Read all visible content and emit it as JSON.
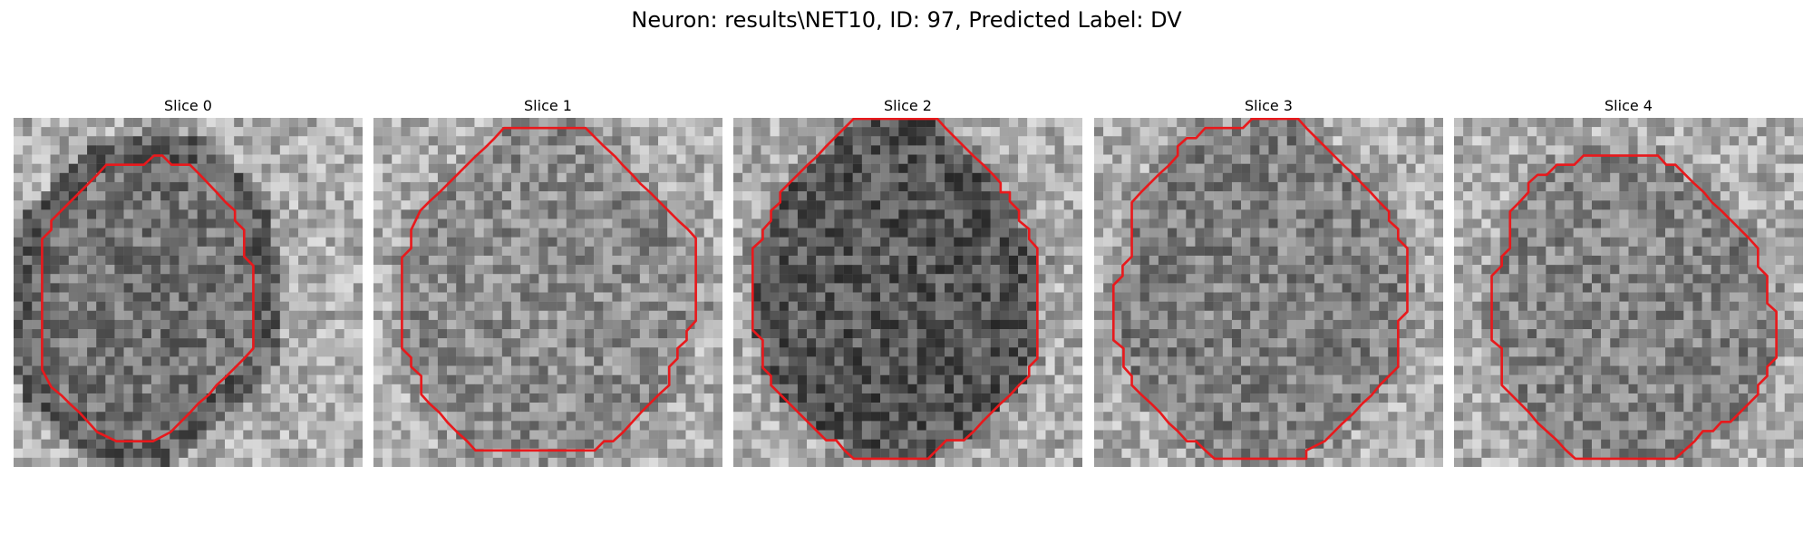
{
  "figure": {
    "title": "Neuron: results\\NET10, ID: 97, Predicted Label: DV",
    "contour_color": "#e8191c",
    "panels": [
      {
        "title": "Slice 0",
        "contour": [
          [
            5.1,
            10.2
          ],
          [
            6.1,
            9.2
          ],
          [
            7.1,
            8.2
          ],
          [
            8.2,
            7.1
          ],
          [
            9.2,
            6.1
          ],
          [
            10.1,
            5.1
          ],
          [
            14.2,
            5.1
          ],
          [
            15.3,
            4.1
          ],
          [
            16.2,
            4.1
          ],
          [
            17.2,
            5.1
          ],
          [
            19.2,
            5.1
          ],
          [
            20.2,
            6.1
          ],
          [
            22.1,
            8.1
          ],
          [
            23.1,
            9.2
          ],
          [
            24.1,
            10.1
          ],
          [
            24.1,
            11.2
          ],
          [
            25.1,
            12.2
          ],
          [
            25.1,
            15.1
          ],
          [
            26.1,
            16.1
          ],
          [
            26.1,
            25.1
          ],
          [
            25.1,
            26.2
          ],
          [
            24.2,
            27.1
          ],
          [
            23.2,
            28.1
          ],
          [
            22.1,
            29.1
          ],
          [
            21.3,
            30.1
          ],
          [
            20.1,
            31.1
          ],
          [
            19.1,
            32.2
          ],
          [
            18.1,
            33.2
          ],
          [
            17.1,
            34.2
          ],
          [
            15.2,
            35.2
          ],
          [
            14.1,
            35.2
          ],
          [
            12.1,
            35.2
          ],
          [
            11.2,
            35.2
          ],
          [
            9.1,
            34.2
          ],
          [
            8.2,
            33.2
          ],
          [
            7.2,
            32.1
          ],
          [
            6.1,
            31.1
          ],
          [
            5.2,
            30.2
          ],
          [
            4.1,
            29.3
          ],
          [
            3.1,
            27.4
          ],
          [
            3.1,
            24.4
          ],
          [
            3.1,
            13.2
          ],
          [
            4.1,
            12.2
          ],
          [
            4.1,
            11.2
          ]
        ],
        "mid_tone": 0.46,
        "dark_ring": true
      },
      {
        "title": "Slice 1",
        "contour": [
          [
            4.1,
            12.2
          ],
          [
            5.1,
            10.1
          ],
          [
            6.1,
            9.1
          ],
          [
            7.2,
            8.1
          ],
          [
            8.1,
            7.2
          ],
          [
            9.2,
            6.1
          ],
          [
            10.1,
            5.2
          ],
          [
            11.1,
            4.2
          ],
          [
            12.2,
            3.2
          ],
          [
            13.2,
            2.2
          ],
          [
            14.2,
            1.1
          ],
          [
            23.1,
            1.1
          ],
          [
            24.1,
            2.1
          ],
          [
            25.1,
            3.1
          ],
          [
            26.3,
            4.2
          ],
          [
            27.1,
            5.1
          ],
          [
            28.2,
            6.2
          ],
          [
            29.1,
            7.2
          ],
          [
            30.1,
            8.1
          ],
          [
            31.1,
            9.1
          ],
          [
            32.1,
            10.1
          ],
          [
            33.2,
            11.2
          ],
          [
            34.2,
            12.1
          ],
          [
            35.1,
            13.1
          ],
          [
            35.1,
            21.2
          ],
          [
            35.1,
            22.1
          ],
          [
            34.1,
            23.2
          ],
          [
            34.1,
            24.2
          ],
          [
            33.1,
            25.1
          ],
          [
            33.1,
            26.2
          ],
          [
            32.2,
            27.1
          ],
          [
            32.2,
            29.1
          ],
          [
            31.1,
            30.1
          ],
          [
            30.1,
            31.1
          ],
          [
            29.1,
            32.1
          ],
          [
            28.1,
            33.2
          ],
          [
            27.2,
            34.2
          ],
          [
            26.1,
            35.2
          ],
          [
            25.1,
            35.2
          ],
          [
            24.1,
            36.2
          ],
          [
            11.1,
            36.2
          ],
          [
            10.2,
            35.2
          ],
          [
            9.1,
            34.2
          ],
          [
            8.1,
            33.2
          ],
          [
            7.2,
            32.1
          ],
          [
            6.1,
            31.1
          ],
          [
            5.2,
            30.1
          ],
          [
            5.2,
            28.1
          ],
          [
            4.1,
            27.1
          ],
          [
            4.1,
            26.1
          ],
          [
            3.1,
            25.1
          ],
          [
            3.1,
            15.2
          ],
          [
            4.1,
            14.2
          ],
          [
            4.1,
            13.2
          ]
        ],
        "mid_tone": 0.55,
        "dark_ring": false
      },
      {
        "title": "Slice 2",
        "contour": [
          [
            5.1,
            8.1
          ],
          [
            6.1,
            7.1
          ],
          [
            7.1,
            6.1
          ],
          [
            8.1,
            5.1
          ],
          [
            9.1,
            4.2
          ],
          [
            10.1,
            3.1
          ],
          [
            11.1,
            2.1
          ],
          [
            12.1,
            1.1
          ],
          [
            13.1,
            0.1
          ],
          [
            22.2,
            0.1
          ],
          [
            23.1,
            1.1
          ],
          [
            24.1,
            2.1
          ],
          [
            25.1,
            3.1
          ],
          [
            26.2,
            4.2
          ],
          [
            27.2,
            5.1
          ],
          [
            28.2,
            6.1
          ],
          [
            29.1,
            7.1
          ],
          [
            29.1,
            8.1
          ],
          [
            30.1,
            8.1
          ],
          [
            30.1,
            9.1
          ],
          [
            31.1,
            10.1
          ],
          [
            31.1,
            11.2
          ],
          [
            32.2,
            12.1
          ],
          [
            32.2,
            13.2
          ],
          [
            33.1,
            14.2
          ],
          [
            33.1,
            20.2
          ],
          [
            33.1,
            21.1
          ],
          [
            33.1,
            22.2
          ],
          [
            33.1,
            26.2
          ],
          [
            32.2,
            27.1
          ],
          [
            32.2,
            28.1
          ],
          [
            31.1,
            29.1
          ],
          [
            30.1,
            30.2
          ],
          [
            29.1,
            31.1
          ],
          [
            28.1,
            32.1
          ],
          [
            27.1,
            33.1
          ],
          [
            26.2,
            34.1
          ],
          [
            25.1,
            35.1
          ],
          [
            23.2,
            35.1
          ],
          [
            22.2,
            36.1
          ],
          [
            21.2,
            37.1
          ],
          [
            16.2,
            37.1
          ],
          [
            13.1,
            37.1
          ],
          [
            12.1,
            36.2
          ],
          [
            11.2,
            35.1
          ],
          [
            10.1,
            35.1
          ],
          [
            9.1,
            34.1
          ],
          [
            8.1,
            33.1
          ],
          [
            7.1,
            32.1
          ],
          [
            6.1,
            31.1
          ],
          [
            5.1,
            30.1
          ],
          [
            4.1,
            29.1
          ],
          [
            4.1,
            28.1
          ],
          [
            3.2,
            27.2
          ],
          [
            3.2,
            25.1
          ],
          [
            3.2,
            24.2
          ],
          [
            2.1,
            23.1
          ],
          [
            2.1,
            14.2
          ],
          [
            3.2,
            13.2
          ],
          [
            3.2,
            12.2
          ],
          [
            4.1,
            11.2
          ],
          [
            4.1,
            10.1
          ],
          [
            5.1,
            9.2
          ]
        ],
        "mid_tone": 0.34,
        "dark_ring": false
      },
      {
        "title": "Slice 3",
        "contour": [
          [
            4.1,
            9.2
          ],
          [
            5.1,
            8.1
          ],
          [
            6.1,
            7.1
          ],
          [
            7.1,
            6.1
          ],
          [
            8.1,
            5.2
          ],
          [
            9.1,
            4.1
          ],
          [
            9.1,
            3.1
          ],
          [
            10.1,
            2.2
          ],
          [
            11.1,
            2.2
          ],
          [
            12.1,
            1.1
          ],
          [
            16.2,
            1.1
          ],
          [
            17.2,
            0.1
          ],
          [
            22.2,
            0.1
          ],
          [
            23.1,
            1.1
          ],
          [
            24.1,
            2.1
          ],
          [
            25.1,
            3.1
          ],
          [
            26.2,
            4.2
          ],
          [
            27.2,
            5.2
          ],
          [
            28.2,
            6.1
          ],
          [
            29.1,
            7.1
          ],
          [
            30.1,
            8.1
          ],
          [
            31.1,
            9.2
          ],
          [
            32.1,
            10.2
          ],
          [
            32.1,
            11.2
          ],
          [
            33.1,
            12.1
          ],
          [
            33.1,
            13.2
          ],
          [
            34.1,
            14.2
          ],
          [
            34.1,
            20.2
          ],
          [
            34.1,
            21.1
          ],
          [
            33.1,
            22.1
          ],
          [
            33.1,
            23.1
          ],
          [
            33.1,
            27.1
          ],
          [
            32.1,
            28.1
          ],
          [
            31.1,
            29.1
          ],
          [
            30.2,
            30.2
          ],
          [
            29.2,
            31.1
          ],
          [
            28.2,
            32.2
          ],
          [
            27.1,
            33.2
          ],
          [
            26.1,
            34.2
          ],
          [
            25.1,
            35.2
          ],
          [
            23.1,
            36.2
          ],
          [
            23.1,
            37.1
          ],
          [
            14.1,
            37.1
          ],
          [
            13.1,
            37.1
          ],
          [
            12.1,
            36.2
          ],
          [
            11.1,
            35.2
          ],
          [
            10.1,
            35.2
          ],
          [
            9.1,
            34.1
          ],
          [
            8.1,
            33.2
          ],
          [
            7.2,
            32.1
          ],
          [
            6.2,
            31.1
          ],
          [
            5.1,
            30.1
          ],
          [
            4.1,
            29.1
          ],
          [
            4.1,
            28.1
          ],
          [
            3.2,
            27.1
          ],
          [
            3.2,
            25.1
          ],
          [
            2.1,
            24.2
          ],
          [
            2.1,
            18.2
          ],
          [
            3.1,
            17.2
          ],
          [
            3.1,
            16.1
          ],
          [
            4.1,
            15.1
          ],
          [
            4.1,
            12.2
          ],
          [
            4.1,
            11.2
          ],
          [
            4.1,
            10.1
          ]
        ],
        "mid_tone": 0.5,
        "dark_ring": false
      },
      {
        "title": "Slice 4",
        "contour": [
          [
            7.1,
            9.2
          ],
          [
            8.1,
            8.1
          ],
          [
            8.1,
            7.1
          ],
          [
            9.1,
            6.2
          ],
          [
            10.1,
            6.2
          ],
          [
            11.2,
            5.1
          ],
          [
            13.1,
            5.1
          ],
          [
            14.1,
            4.1
          ],
          [
            16.2,
            4.1
          ],
          [
            22.2,
            4.1
          ],
          [
            23.1,
            5.1
          ],
          [
            24.1,
            5.1
          ],
          [
            25.1,
            6.1
          ],
          [
            26.1,
            7.1
          ],
          [
            27.2,
            8.1
          ],
          [
            28.1,
            9.2
          ],
          [
            29.1,
            10.1
          ],
          [
            30.1,
            11.1
          ],
          [
            31.1,
            12.1
          ],
          [
            32.1,
            13.1
          ],
          [
            33.1,
            14.2
          ],
          [
            33.1,
            16.2
          ],
          [
            34.1,
            17.2
          ],
          [
            34.1,
            20.2
          ],
          [
            35.1,
            21.1
          ],
          [
            35.1,
            26.1
          ],
          [
            34.1,
            27.1
          ],
          [
            34.1,
            28.1
          ],
          [
            33.1,
            29.1
          ],
          [
            33.1,
            30.1
          ],
          [
            32.1,
            31.1
          ],
          [
            31.1,
            32.1
          ],
          [
            30.1,
            33.1
          ],
          [
            29.1,
            33.1
          ],
          [
            28.2,
            34.1
          ],
          [
            27.1,
            34.1
          ],
          [
            26.2,
            35.2
          ],
          [
            25.2,
            36.1
          ],
          [
            24.1,
            37.1
          ],
          [
            13.2,
            37.1
          ],
          [
            12.1,
            36.1
          ],
          [
            11.2,
            35.1
          ],
          [
            10.2,
            34.2
          ],
          [
            9.1,
            33.2
          ],
          [
            8.2,
            32.1
          ],
          [
            7.2,
            31.1
          ],
          [
            6.2,
            30.1
          ],
          [
            5.2,
            29.1
          ],
          [
            5.2,
            27.2
          ],
          [
            5.2,
            25.1
          ],
          [
            4.1,
            24.2
          ],
          [
            4.1,
            17.2
          ],
          [
            5.2,
            16.1
          ],
          [
            5.2,
            15.1
          ],
          [
            6.1,
            14.2
          ],
          [
            6.1,
            12.1
          ],
          [
            6.1,
            11.1
          ],
          [
            6.1,
            10.2
          ]
        ],
        "mid_tone": 0.52,
        "dark_ring": false
      }
    ]
  }
}
